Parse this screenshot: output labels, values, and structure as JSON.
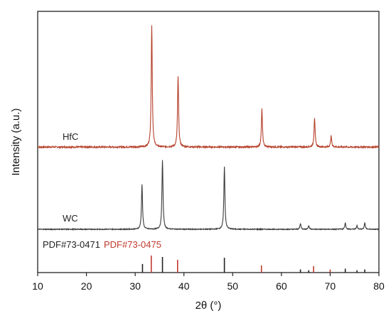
{
  "chart_data": {
    "type": "line",
    "title": "",
    "xlabel": "2θ (°)",
    "ylabel": "Intensity (a.u.)",
    "xlim": [
      10,
      80
    ],
    "x_ticks": [
      "10",
      "20",
      "30",
      "40",
      "50",
      "60",
      "70",
      "80"
    ],
    "grid": false,
    "colors": {
      "HfC": "#b5412b",
      "WC": "#3a3a3a",
      "PDF#73-0471": "#222222",
      "PDF#73-0475": "#c0392b"
    },
    "series": [
      {
        "name": "HfC",
        "type": "line",
        "baseline": 0.04,
        "noise": 0.012,
        "peaks": [
          {
            "x": 33.4,
            "height": 1.0
          },
          {
            "x": 38.8,
            "height": 0.58
          },
          {
            "x": 56.0,
            "height": 0.31
          },
          {
            "x": 66.8,
            "height": 0.24
          },
          {
            "x": 70.2,
            "height": 0.09
          }
        ]
      },
      {
        "name": "WC",
        "type": "line",
        "baseline": 0.03,
        "noise": 0.012,
        "peaks": [
          {
            "x": 31.4,
            "height": 0.63
          },
          {
            "x": 35.6,
            "height": 0.97
          },
          {
            "x": 48.3,
            "height": 0.88
          },
          {
            "x": 63.9,
            "height": 0.08
          },
          {
            "x": 65.6,
            "height": 0.05
          },
          {
            "x": 73.1,
            "height": 0.09
          },
          {
            "x": 75.5,
            "height": 0.05
          },
          {
            "x": 77.1,
            "height": 0.09
          }
        ]
      },
      {
        "name": "PDF#73-0471",
        "type": "stick",
        "lines": [
          {
            "x": 31.5,
            "height": 0.55
          },
          {
            "x": 35.6,
            "height": 1.0
          },
          {
            "x": 48.3,
            "height": 0.95
          },
          {
            "x": 63.9,
            "height": 0.2
          },
          {
            "x": 65.6,
            "height": 0.15
          },
          {
            "x": 73.1,
            "height": 0.25
          },
          {
            "x": 75.5,
            "height": 0.15
          },
          {
            "x": 77.1,
            "height": 0.2
          }
        ]
      },
      {
        "name": "PDF#73-0475",
        "type": "stick",
        "lines": [
          {
            "x": 33.3,
            "height": 1.0
          },
          {
            "x": 38.7,
            "height": 0.75
          },
          {
            "x": 55.9,
            "height": 0.42
          },
          {
            "x": 66.6,
            "height": 0.38
          },
          {
            "x": 70.0,
            "height": 0.18
          }
        ]
      }
    ],
    "legend": {
      "placement": "inline"
    }
  }
}
